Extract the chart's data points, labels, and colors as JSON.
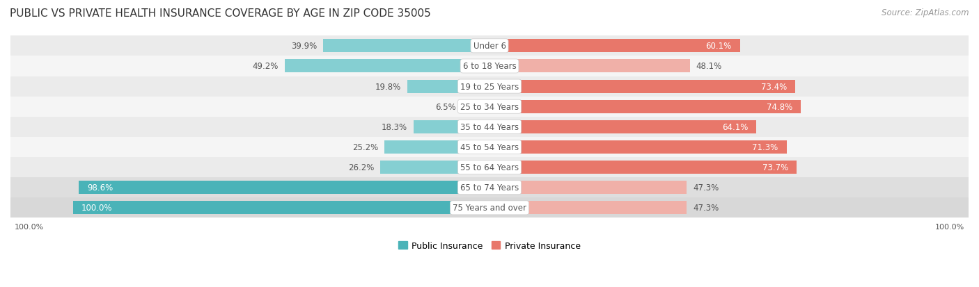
{
  "title": "PUBLIC VS PRIVATE HEALTH INSURANCE COVERAGE BY AGE IN ZIP CODE 35005",
  "source": "Source: ZipAtlas.com",
  "categories": [
    "Under 6",
    "6 to 18 Years",
    "19 to 25 Years",
    "25 to 34 Years",
    "35 to 44 Years",
    "45 to 54 Years",
    "55 to 64 Years",
    "65 to 74 Years",
    "75 Years and over"
  ],
  "public_values": [
    39.9,
    49.2,
    19.8,
    6.5,
    18.3,
    25.2,
    26.2,
    98.6,
    100.0
  ],
  "private_values": [
    60.1,
    48.1,
    73.4,
    74.8,
    64.1,
    71.3,
    73.7,
    47.3,
    47.3
  ],
  "public_color_dark": "#4ab3b8",
  "public_color_light": "#85cfd2",
  "private_color_dark": "#e8776a",
  "private_color_light": "#f0b0a8",
  "row_bg_colors": [
    "#ebebeb",
    "#f5f5f5",
    "#ebebeb",
    "#f5f5f5",
    "#ebebeb",
    "#f5f5f5",
    "#ebebeb",
    "#dedede",
    "#d8d8d8"
  ],
  "label_color_dark": "#555555",
  "label_color_white": "#ffffff",
  "center_label_bg": "#ffffff",
  "max_value": 100.0,
  "title_fontsize": 11,
  "source_fontsize": 8.5,
  "bar_label_fontsize": 8.5,
  "category_fontsize": 8.5,
  "legend_fontsize": 9,
  "axis_label_fontsize": 8,
  "background_color": "#ffffff",
  "pub_threshold": 50,
  "priv_threshold": 50
}
